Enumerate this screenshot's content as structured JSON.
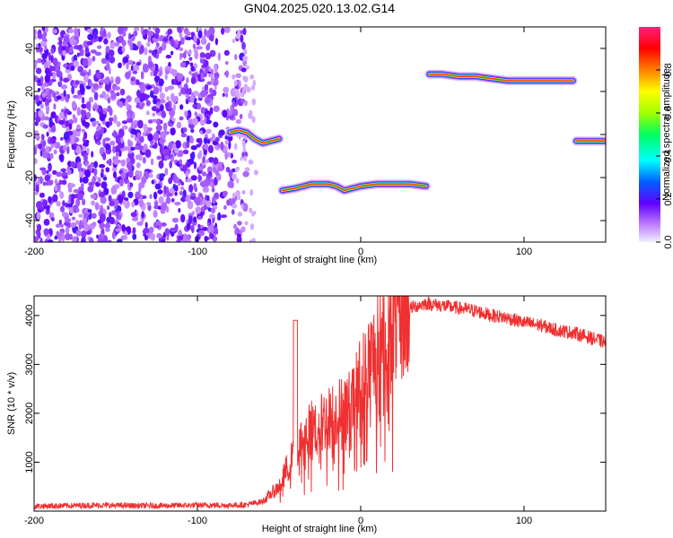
{
  "title": "GN04.2025.020.13.02.G14",
  "chart_data": [
    {
      "type": "heatmap",
      "xlabel": "Height of straight line (km)",
      "ylabel": "Frequency (Hz)",
      "xlim": [
        -200,
        150
      ],
      "ylim": [
        -50,
        50
      ],
      "xticks": [
        -200,
        -100,
        0,
        100
      ],
      "yticks": [
        -40,
        -20,
        0,
        20,
        40
      ],
      "colorbar": {
        "label": "Normalized spectral amplitude",
        "range": [
          0,
          1
        ],
        "ticks": [
          "0.0",
          "0.2",
          "0.4",
          "0.6",
          "0.8"
        ],
        "colors": [
          "#f0f0ff",
          "#c080ff",
          "#6000ff",
          "#0060ff",
          "#00ffff",
          "#00ff60",
          "#a0ff00",
          "#ffff00",
          "#ff8000",
          "#ff0000",
          "#ff2080"
        ]
      },
      "noise_region": {
        "x": [
          -200,
          -70
        ],
        "y": [
          -50,
          50
        ],
        "level": 0.3
      },
      "ridges": [
        {
          "x": [
            -80,
            -75,
            -70,
            -65,
            -60,
            -55,
            -50
          ],
          "y": [
            1,
            2,
            1,
            -2,
            -4,
            -3,
            -2
          ],
          "level": 0.9
        },
        {
          "x": [
            -48,
            -40,
            -30,
            -20,
            -15,
            -10,
            -5,
            0,
            10,
            20,
            30,
            40
          ],
          "y": [
            -26,
            -25,
            -23,
            -23,
            -24,
            -26,
            -25,
            -24,
            -23,
            -23,
            -23,
            -24
          ],
          "level": 0.95
        },
        {
          "x": [
            42,
            50,
            60,
            70,
            80,
            90,
            100,
            110,
            120,
            130
          ],
          "y": [
            28,
            28,
            27,
            27,
            26,
            25,
            25,
            25,
            25,
            25
          ],
          "level": 0.9
        },
        {
          "x": [
            132,
            140,
            150
          ],
          "y": [
            -3,
            -3,
            -3
          ],
          "level": 0.95
        }
      ]
    },
    {
      "type": "line",
      "xlabel": "Height of straight line (km)",
      "ylabel": "SNR (10 * v/v)",
      "xlim": [
        -200,
        150
      ],
      "ylim": [
        0,
        4400
      ],
      "xticks": [
        -200,
        -100,
        0,
        100
      ],
      "yticks": [
        1000,
        2000,
        3000,
        4000
      ],
      "color": "#f03030",
      "series": [
        {
          "x": [
            -200,
            -180,
            -160,
            -140,
            -120,
            -100,
            -80,
            -70,
            -60,
            -50,
            -45,
            -40,
            -35,
            -30,
            -25,
            -20,
            -15,
            -10,
            -5,
            0,
            5,
            10,
            15,
            20,
            25,
            30,
            40,
            50,
            60,
            70,
            80,
            90,
            100,
            110,
            120,
            130,
            140,
            150
          ],
          "values": [
            100,
            110,
            120,
            110,
            110,
            120,
            120,
            130,
            200,
            500,
            900,
            1200,
            1500,
            1700,
            1800,
            1900,
            2000,
            2100,
            2200,
            2700,
            3000,
            3300,
            3600,
            3850,
            4000,
            4150,
            4250,
            4200,
            4150,
            4100,
            4000,
            3950,
            3850,
            3800,
            3700,
            3650,
            3550,
            3450
          ]
        }
      ]
    }
  ]
}
